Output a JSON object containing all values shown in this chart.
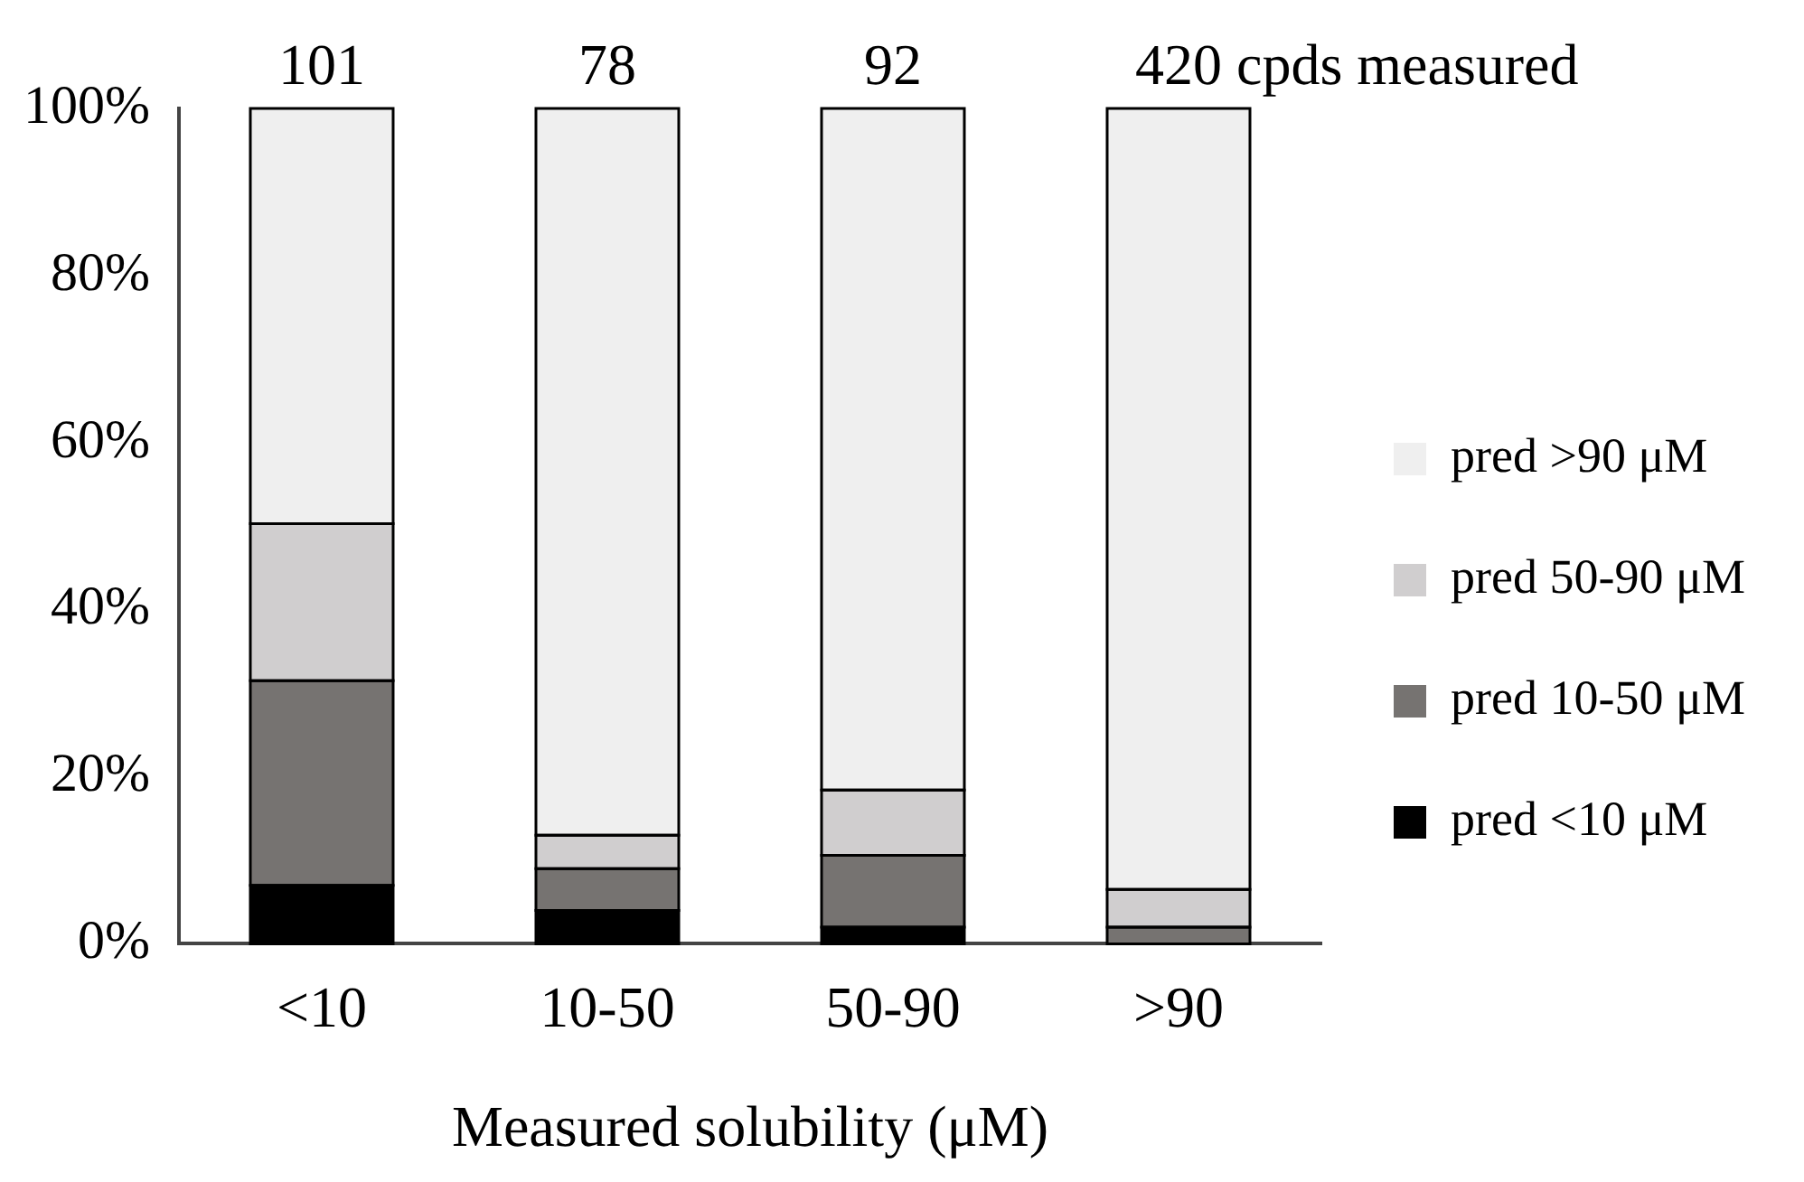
{
  "chart_data": {
    "type": "bar",
    "stacked": true,
    "xlabel": "Measured solubility (μM)",
    "categories": [
      "<10",
      "10-50",
      "50-90",
      ">90"
    ],
    "series": [
      {
        "name": "pred <10 μM",
        "color": "#000000",
        "values": [
          7,
          4,
          2,
          0
        ]
      },
      {
        "name": "pred 10-50 μM",
        "color": "#767371",
        "values": [
          24.5,
          5,
          8.6,
          2
        ]
      },
      {
        "name": "pred 50-90 μM",
        "color": "#d0cecf",
        "values": [
          18.8,
          4,
          7.8,
          4.5
        ]
      },
      {
        "name": "pred >90 μM",
        "color": "#efefef",
        "values": [
          49.7,
          87,
          81.6,
          93.5
        ]
      }
    ],
    "ylim": [
      0,
      100
    ],
    "yticks": [
      {
        "value": 0,
        "label": "0%"
      },
      {
        "value": 20,
        "label": "20%"
      },
      {
        "value": 40,
        "label": "40%"
      },
      {
        "value": 60,
        "label": "60%"
      },
      {
        "value": 80,
        "label": "80%"
      },
      {
        "value": 100,
        "label": "100%"
      }
    ],
    "grid": false,
    "legend": "right",
    "annotations": [
      {
        "text": "101",
        "x": "<10",
        "y": 100
      },
      {
        "text": "78",
        "x": "10-50",
        "y": 100
      },
      {
        "text": "92",
        "x": "50-90",
        "y": 100
      },
      {
        "text": "420 cpds measured",
        "x": ">90",
        "y": 100
      }
    ]
  }
}
